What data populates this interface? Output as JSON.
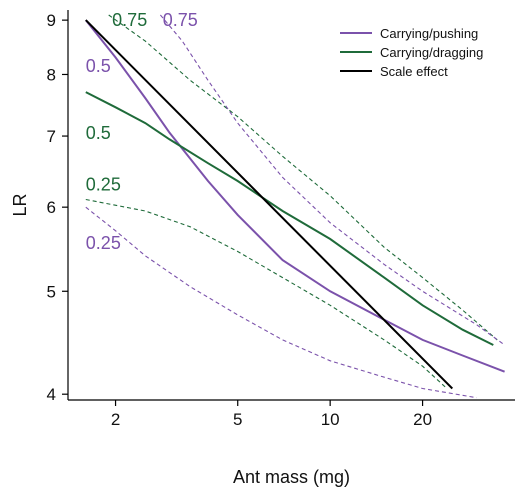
{
  "chart_data": {
    "type": "line",
    "title": "",
    "xlabel": "Ant mass (mg)",
    "ylabel": "LR",
    "x_scale": "log",
    "y_scale": "log",
    "xlim": [
      1.4,
      40
    ],
    "ylim": [
      3.95,
      9.2
    ],
    "x_ticks": [
      2,
      5,
      10,
      20
    ],
    "y_ticks": [
      4,
      5,
      6,
      7,
      8,
      9
    ],
    "grid": false,
    "legend_position": "top-right",
    "series": [
      {
        "name": "Carrying/pushing",
        "color": "#7b52ab",
        "style": "solid",
        "points": [
          [
            1.6,
            9.0
          ],
          [
            2.0,
            8.3
          ],
          [
            2.5,
            7.6
          ],
          [
            3.0,
            7.05
          ],
          [
            4.0,
            6.35
          ],
          [
            5.0,
            5.9
          ],
          [
            7.0,
            5.35
          ],
          [
            10.0,
            5.0
          ],
          [
            15.0,
            4.7
          ],
          [
            20.0,
            4.5
          ],
          [
            27.0,
            4.35
          ],
          [
            37.0,
            4.2
          ]
        ]
      },
      {
        "name": "Carrying/dragging",
        "color": "#1f6b3a",
        "style": "solid",
        "points": [
          [
            1.6,
            7.7
          ],
          [
            2.0,
            7.45
          ],
          [
            2.5,
            7.2
          ],
          [
            3.0,
            6.95
          ],
          [
            4.0,
            6.6
          ],
          [
            5.0,
            6.35
          ],
          [
            7.0,
            5.95
          ],
          [
            10.0,
            5.6
          ],
          [
            15.0,
            5.15
          ],
          [
            20.0,
            4.85
          ],
          [
            27.0,
            4.6
          ],
          [
            34.0,
            4.45
          ]
        ]
      },
      {
        "name": "Scale effect",
        "color": "#000000",
        "style": "solid",
        "points": [
          [
            1.6,
            9.0
          ],
          [
            25.0,
            4.05
          ]
        ]
      },
      {
        "color": "#1f6b3a",
        "style": "dashed",
        "points": [
          [
            1.9,
            9.1
          ],
          [
            2.5,
            8.6
          ],
          [
            3.5,
            7.9
          ],
          [
            5.0,
            7.3
          ],
          [
            7.0,
            6.7
          ],
          [
            10.0,
            6.15
          ],
          [
            15.0,
            5.5
          ],
          [
            20.0,
            5.15
          ],
          [
            27.0,
            4.8
          ],
          [
            35.0,
            4.5
          ]
        ]
      },
      {
        "color": "#1f6b3a",
        "style": "dashed",
        "points": [
          [
            1.6,
            6.1
          ],
          [
            2.5,
            5.95
          ],
          [
            3.5,
            5.75
          ],
          [
            5.0,
            5.45
          ],
          [
            7.0,
            5.15
          ],
          [
            10.0,
            4.85
          ],
          [
            15.0,
            4.5
          ],
          [
            20.0,
            4.25
          ],
          [
            24.0,
            4.05
          ]
        ]
      },
      {
        "color": "#7b52ab",
        "style": "dashed",
        "points": [
          [
            2.8,
            9.1
          ],
          [
            3.3,
            8.6
          ],
          [
            4.0,
            7.9
          ],
          [
            5.0,
            7.2
          ],
          [
            7.0,
            6.4
          ],
          [
            10.0,
            5.8
          ],
          [
            15.0,
            5.3
          ],
          [
            20.0,
            5.0
          ],
          [
            30.0,
            4.65
          ],
          [
            37.0,
            4.45
          ]
        ]
      },
      {
        "color": "#7b52ab",
        "style": "dashed",
        "points": [
          [
            1.6,
            6.0
          ],
          [
            2.0,
            5.7
          ],
          [
            2.5,
            5.4
          ],
          [
            3.5,
            5.05
          ],
          [
            5.0,
            4.75
          ],
          [
            7.0,
            4.5
          ],
          [
            10.0,
            4.3
          ],
          [
            15.0,
            4.15
          ],
          [
            20.0,
            4.05
          ],
          [
            30.0,
            3.97
          ]
        ]
      }
    ],
    "annotations": [
      {
        "text": "0.75",
        "x": 1.95,
        "y": 9.0,
        "color": "#1f6b3a"
      },
      {
        "text": "0.75",
        "x": 2.85,
        "y": 9.0,
        "color": "#7b52ab"
      },
      {
        "text": "0.5",
        "x": 1.6,
        "y": 8.15,
        "color": "#7b52ab"
      },
      {
        "text": "0.5",
        "x": 1.6,
        "y": 7.05,
        "color": "#1f6b3a"
      },
      {
        "text": "0.25",
        "x": 1.6,
        "y": 6.3,
        "color": "#1f6b3a"
      },
      {
        "text": "0.25",
        "x": 1.6,
        "y": 5.55,
        "color": "#7b52ab"
      }
    ]
  }
}
